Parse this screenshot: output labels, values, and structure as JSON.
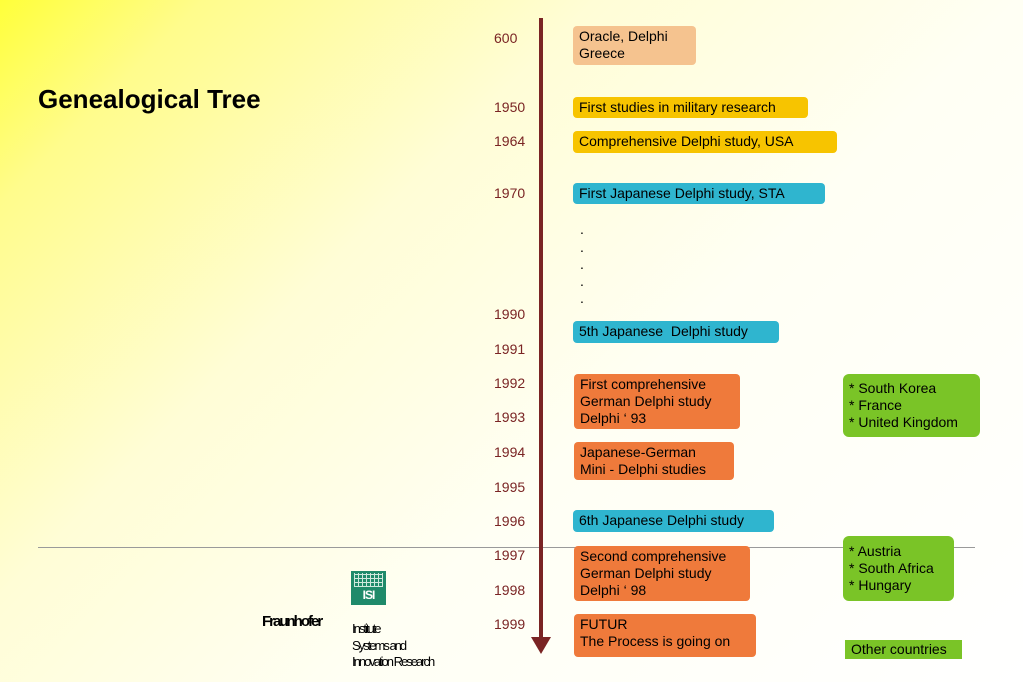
{
  "title": "Genealogical Tree",
  "years": [
    "600",
    "1950",
    "1964",
    "1970",
    "1990",
    "1991",
    "1992",
    "1993",
    "1994",
    "1995",
    "1996",
    "1997",
    "1998",
    "1999"
  ],
  "events": {
    "e600": "Oracle, Delphi\nGreece",
    "e1950": "First studies in military research",
    "e1964": "Comprehensive Delphi study, USA",
    "e1970": "First Japanese Delphi study, STA",
    "e1990": "5th Japanese  Delphi study",
    "e1992": "First comprehensive\nGerman Delphi study\nDelphi ‘ 93",
    "e1994": "Japanese-German\nMini - Delphi studies",
    "e1996": "6th Japanese Delphi study",
    "e1997": "Second comprehensive\nGerman Delphi study\nDelphi ‘ 98",
    "e1999": "FUTUR\nThe Process is going on"
  },
  "countries": {
    "group1": "* South Korea\n* France\n* United Kingdom",
    "group2": "* Austria\n* South Africa\n* Hungary",
    "other": "Other countries"
  },
  "dots": [
    ".",
    ".",
    ".",
    ".",
    "."
  ],
  "logo": {
    "isi": "ISI",
    "fraunhofer": "Fraunhofer",
    "institute_lines": [
      "Institute",
      "Systems and",
      "Innovation Research"
    ]
  },
  "colors": {
    "timeline": "#7a2424",
    "peach": "#f5c38f",
    "yellow": "#f7c400",
    "teal": "#2fb5cf",
    "orange": "#ef7a3b",
    "green": "#7ac427"
  }
}
